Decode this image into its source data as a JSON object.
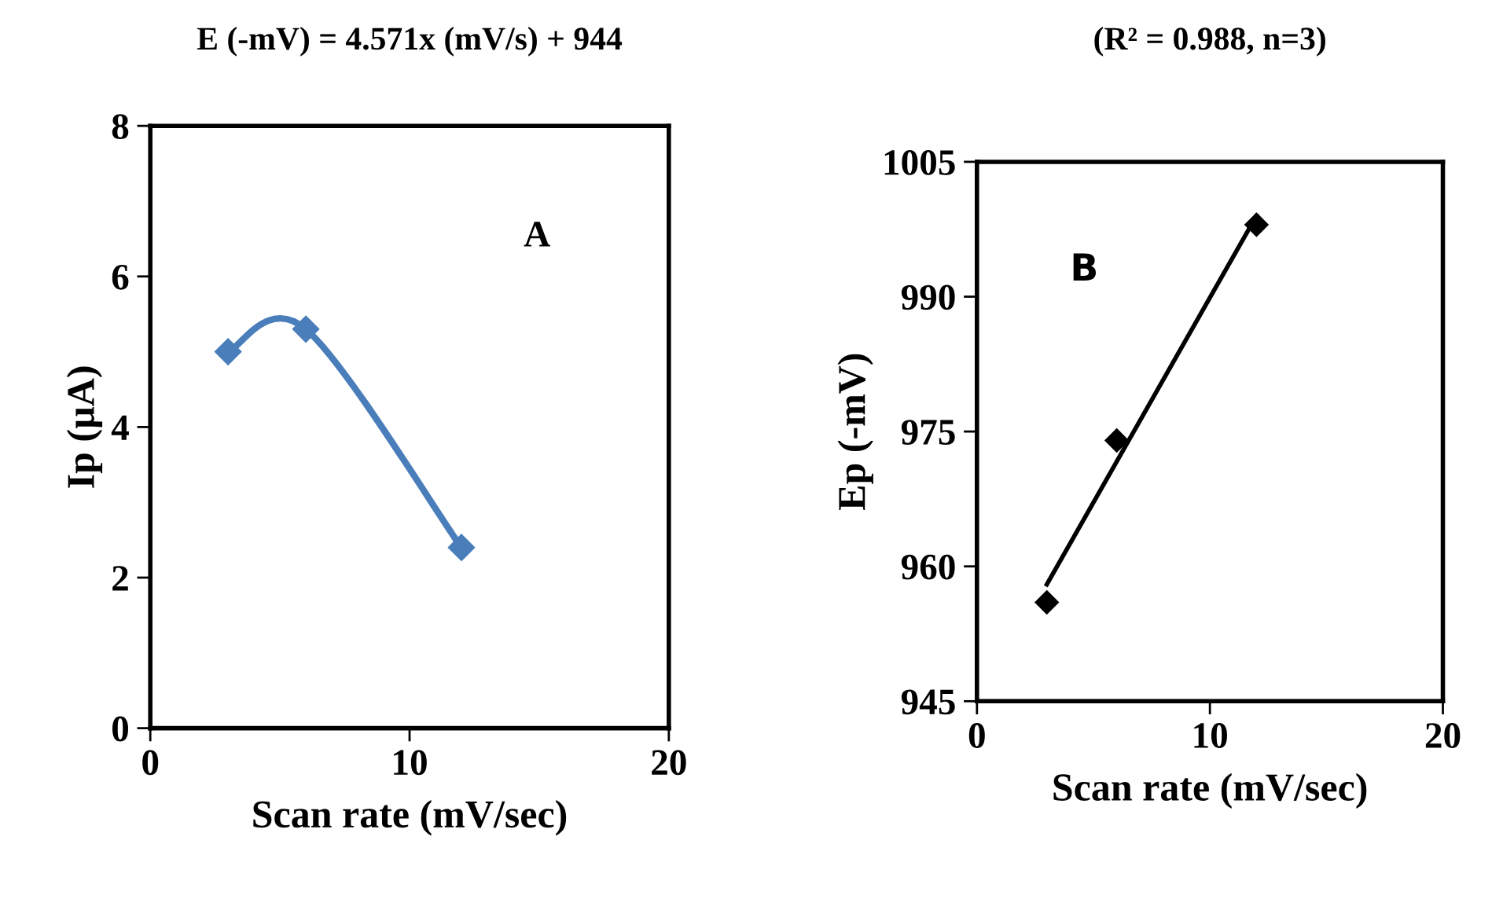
{
  "chart_data": [
    {
      "type": "line",
      "title": "E (-mV) = 4.571x (mV/s) + 944",
      "xlabel": "Scan rate (mV/sec)",
      "ylabel": "Ip (µA)",
      "xlim": [
        0,
        20
      ],
      "xticks": [
        0,
        10,
        20
      ],
      "ylim": [
        0,
        8
      ],
      "yticks": [
        0,
        2,
        4,
        6,
        8
      ],
      "grid": false,
      "legend": false,
      "marker": "diamond",
      "line_style": "solid",
      "annotations": [
        "A"
      ],
      "series": [
        {
          "color": "#4a7ebb",
          "x": [
            3,
            6,
            12
          ],
          "values": [
            5.0,
            5.3,
            2.4
          ]
        }
      ]
    },
    {
      "type": "scatter",
      "title": "(R² = 0.988, n=3)",
      "xlabel": "Scan rate (mV/sec)",
      "ylabel": "Ep (-mV)",
      "xlim": [
        0,
        20
      ],
      "xticks": [
        0,
        10,
        20
      ],
      "ylim": [
        945,
        1005
      ],
      "yticks": [
        945,
        960,
        975,
        990,
        1005
      ],
      "grid": false,
      "legend": false,
      "marker": "diamond",
      "annotations": [
        "B"
      ],
      "series": [
        {
          "color": "#000000",
          "x": [
            3,
            6,
            12
          ],
          "values": [
            956,
            974,
            998
          ]
        },
        {
          "type": "line",
          "marker": "none",
          "color": "#000000",
          "x": [
            3,
            12
          ],
          "values": [
            958,
            999
          ]
        }
      ]
    }
  ]
}
